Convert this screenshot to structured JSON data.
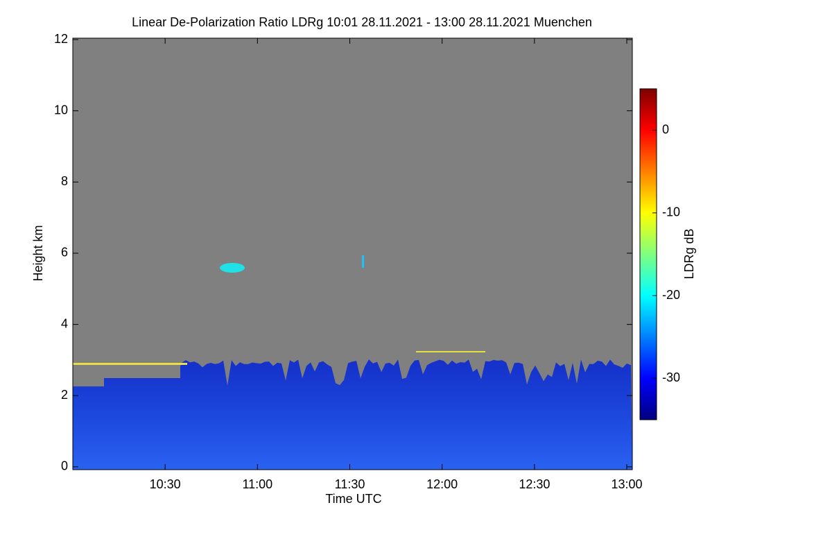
{
  "chart_data": {
    "type": "heatmap",
    "title": "Linear De-Polarization Ratio LDRg   10:01 28.11.2021 - 13:00 28.11.2021 Muenchen",
    "xlabel": "Time UTC",
    "ylabel": "Height km",
    "xlim": [
      10.0,
      13.03
    ],
    "xticks": [
      {
        "value": 10.5,
        "label": "10:30"
      },
      {
        "value": 11.0,
        "label": "11:00"
      },
      {
        "value": 11.5,
        "label": "11:30"
      },
      {
        "value": 12.0,
        "label": "12:00"
      },
      {
        "value": 12.5,
        "label": "12:30"
      },
      {
        "value": 13.0,
        "label": "13:00"
      }
    ],
    "ylim": [
      -0.08,
      12.04
    ],
    "yticks": [
      0,
      2,
      4,
      6,
      8,
      10,
      12
    ],
    "colorbar": {
      "label": "LDRg dB",
      "clim": [
        -35,
        5
      ],
      "ticks": [
        0,
        -10,
        -20,
        -30
      ],
      "colormap": [
        "#00007f",
        "#0000ff",
        "#0080ff",
        "#00ffff",
        "#80ff80",
        "#ffff00",
        "#ff8000",
        "#ff0000",
        "#7f0000"
      ]
    }
  }
}
